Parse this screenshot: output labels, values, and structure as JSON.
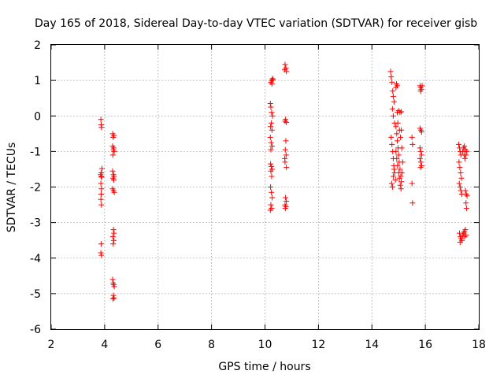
{
  "chart_data": {
    "type": "scatter",
    "title": "Day 165 of 2018, Sidereal Day-to-day VTEC variation (SDTVAR) for receiver gisb",
    "xlabel": "GPS time / hours",
    "ylabel": "SDTVAR / TECUs",
    "xlim": [
      2,
      18
    ],
    "ylim": [
      -6,
      2
    ],
    "xticks": [
      "2",
      "4",
      "6",
      "8",
      "10",
      "12",
      "14",
      "16",
      "18"
    ],
    "yticks": [
      "2",
      "1",
      "0",
      "-1",
      "-2",
      "-3",
      "-4",
      "-5",
      "-6"
    ],
    "grid": true,
    "marker": "+",
    "color": "#ff0000",
    "series": [
      {
        "name": "SDTVAR",
        "points": [
          [
            3.86,
            -0.1
          ],
          [
            3.87,
            -0.25
          ],
          [
            3.88,
            -0.32
          ],
          [
            3.85,
            -1.65
          ],
          [
            3.87,
            -1.7
          ],
          [
            3.89,
            -1.72
          ],
          [
            3.88,
            -1.6
          ],
          [
            3.9,
            -1.48
          ],
          [
            3.86,
            -1.9
          ],
          [
            3.88,
            -2.05
          ],
          [
            3.87,
            -2.2
          ],
          [
            3.86,
            -2.35
          ],
          [
            3.88,
            -2.5
          ],
          [
            3.87,
            -3.6
          ],
          [
            3.86,
            -3.85
          ],
          [
            3.88,
            -3.92
          ],
          [
            4.3,
            -0.5
          ],
          [
            4.32,
            -0.6
          ],
          [
            4.35,
            -0.55
          ],
          [
            4.3,
            -0.85
          ],
          [
            4.33,
            -0.95
          ],
          [
            4.36,
            -1.0
          ],
          [
            4.31,
            -1.1
          ],
          [
            4.34,
            -0.9
          ],
          [
            4.3,
            -1.55
          ],
          [
            4.33,
            -1.65
          ],
          [
            4.35,
            -1.7
          ],
          [
            4.31,
            -1.75
          ],
          [
            4.34,
            -1.8
          ],
          [
            4.3,
            -2.05
          ],
          [
            4.33,
            -2.1
          ],
          [
            4.36,
            -2.15
          ],
          [
            4.33,
            -3.2
          ],
          [
            4.35,
            -3.3
          ],
          [
            4.31,
            -3.4
          ],
          [
            4.34,
            -3.5
          ],
          [
            4.32,
            -3.6
          ],
          [
            4.3,
            -4.6
          ],
          [
            4.34,
            -4.75
          ],
          [
            4.36,
            -4.8
          ],
          [
            4.32,
            -4.7
          ],
          [
            4.33,
            -5.05
          ],
          [
            4.35,
            -5.12
          ],
          [
            4.31,
            -5.15
          ],
          [
            10.2,
            0.35
          ],
          [
            10.22,
            0.25
          ],
          [
            10.25,
            0.1
          ],
          [
            10.28,
            0.0
          ],
          [
            10.24,
            -0.2
          ],
          [
            10.21,
            -0.3
          ],
          [
            10.26,
            -0.4
          ],
          [
            10.2,
            -0.6
          ],
          [
            10.23,
            -0.75
          ],
          [
            10.27,
            -0.85
          ],
          [
            10.22,
            -0.95
          ],
          [
            10.25,
            1.0
          ],
          [
            10.28,
            1.05
          ],
          [
            10.22,
            0.95
          ],
          [
            10.26,
            0.9
          ],
          [
            10.3,
            1.02
          ],
          [
            10.21,
            -1.35
          ],
          [
            10.24,
            -1.42
          ],
          [
            10.27,
            -1.5
          ],
          [
            10.22,
            -1.55
          ],
          [
            10.25,
            -1.7
          ],
          [
            10.21,
            -2.0
          ],
          [
            10.24,
            -2.15
          ],
          [
            10.27,
            -2.3
          ],
          [
            10.22,
            -2.5
          ],
          [
            10.25,
            -2.6
          ],
          [
            10.2,
            -2.65
          ],
          [
            10.75,
            1.45
          ],
          [
            10.78,
            1.35
          ],
          [
            10.8,
            1.25
          ],
          [
            10.74,
            1.3
          ],
          [
            10.77,
            -0.1
          ],
          [
            10.8,
            -0.18
          ],
          [
            10.75,
            -0.15
          ],
          [
            10.78,
            -0.7
          ],
          [
            10.76,
            -0.95
          ],
          [
            10.79,
            -1.1
          ],
          [
            10.75,
            -1.3
          ],
          [
            10.8,
            -1.45
          ],
          [
            10.74,
            -1.2
          ],
          [
            10.77,
            -2.3
          ],
          [
            10.8,
            -2.4
          ],
          [
            10.75,
            -2.5
          ],
          [
            10.78,
            -2.55
          ],
          [
            10.76,
            -2.6
          ],
          [
            14.7,
            1.25
          ],
          [
            14.72,
            1.1
          ],
          [
            14.75,
            0.95
          ],
          [
            14.78,
            0.7
          ],
          [
            14.8,
            0.55
          ],
          [
            14.83,
            0.4
          ],
          [
            14.77,
            0.2
          ],
          [
            14.8,
            0.0
          ],
          [
            14.85,
            -0.2
          ],
          [
            14.72,
            -0.6
          ],
          [
            14.75,
            -0.8
          ],
          [
            14.78,
            -1.0
          ],
          [
            14.8,
            -1.2
          ],
          [
            14.82,
            -1.4
          ],
          [
            14.85,
            -1.6
          ],
          [
            14.88,
            -1.8
          ],
          [
            14.74,
            -1.9
          ],
          [
            14.77,
            -2.0
          ],
          [
            14.8,
            -1.7
          ],
          [
            14.83,
            -1.5
          ],
          [
            14.9,
            -0.3
          ],
          [
            14.93,
            -0.5
          ],
          [
            14.95,
            -0.7
          ],
          [
            14.98,
            -0.9
          ],
          [
            15.0,
            -1.1
          ],
          [
            15.02,
            -1.3
          ],
          [
            15.05,
            -1.5
          ],
          [
            15.08,
            -1.7
          ],
          [
            15.1,
            -1.85
          ],
          [
            14.95,
            0.1
          ],
          [
            15.0,
            0.15
          ],
          [
            15.05,
            0.1
          ],
          [
            15.1,
            0.12
          ],
          [
            14.97,
            -0.2
          ],
          [
            15.03,
            -0.4
          ],
          [
            15.07,
            -0.6
          ],
          [
            14.9,
            0.8
          ],
          [
            14.92,
            0.9
          ],
          [
            14.95,
            0.85
          ],
          [
            14.9,
            -1.0
          ],
          [
            14.93,
            -1.2
          ],
          [
            14.96,
            -1.4
          ],
          [
            15.0,
            -1.6
          ],
          [
            15.03,
            -1.75
          ],
          [
            15.06,
            -1.95
          ],
          [
            15.09,
            -2.05
          ],
          [
            15.12,
            -1.6
          ],
          [
            15.15,
            -1.3
          ],
          [
            15.12,
            -0.9
          ],
          [
            15.1,
            -0.4
          ],
          [
            15.5,
            -0.6
          ],
          [
            15.52,
            -0.8
          ],
          [
            15.5,
            -1.9
          ],
          [
            15.52,
            -2.45
          ],
          [
            15.8,
            0.85
          ],
          [
            15.82,
            0.8
          ],
          [
            15.85,
            0.75
          ],
          [
            15.88,
            0.85
          ],
          [
            15.82,
            0.7
          ],
          [
            15.8,
            -0.35
          ],
          [
            15.83,
            -0.4
          ],
          [
            15.86,
            -0.45
          ],
          [
            15.8,
            -0.9
          ],
          [
            15.83,
            -1.0
          ],
          [
            15.86,
            -1.1
          ],
          [
            15.8,
            -1.2
          ],
          [
            15.83,
            -1.3
          ],
          [
            15.86,
            -1.4
          ],
          [
            15.82,
            -1.45
          ],
          [
            17.25,
            -0.8
          ],
          [
            17.28,
            -0.9
          ],
          [
            17.3,
            -1.0
          ],
          [
            17.33,
            -1.1
          ],
          [
            17.26,
            -1.3
          ],
          [
            17.29,
            -1.45
          ],
          [
            17.32,
            -1.6
          ],
          [
            17.35,
            -1.75
          ],
          [
            17.27,
            -1.9
          ],
          [
            17.3,
            -2.0
          ],
          [
            17.33,
            -2.1
          ],
          [
            17.36,
            -2.2
          ],
          [
            17.4,
            -1.0
          ],
          [
            17.43,
            -0.9
          ],
          [
            17.46,
            -0.85
          ],
          [
            17.5,
            -0.95
          ],
          [
            17.45,
            -1.1
          ],
          [
            17.48,
            -1.2
          ],
          [
            17.52,
            -1.1
          ],
          [
            17.55,
            -1.0
          ],
          [
            17.5,
            -2.1
          ],
          [
            17.53,
            -2.2
          ],
          [
            17.56,
            -2.25
          ],
          [
            17.52,
            -2.45
          ],
          [
            17.54,
            -2.6
          ],
          [
            17.28,
            -3.3
          ],
          [
            17.31,
            -3.4
          ],
          [
            17.34,
            -3.45
          ],
          [
            17.37,
            -3.5
          ],
          [
            17.3,
            -3.55
          ],
          [
            17.4,
            -3.35
          ],
          [
            17.43,
            -3.3
          ],
          [
            17.46,
            -3.25
          ],
          [
            17.5,
            -3.2
          ],
          [
            17.47,
            -3.4
          ],
          [
            17.52,
            -3.35
          ]
        ]
      }
    ]
  }
}
